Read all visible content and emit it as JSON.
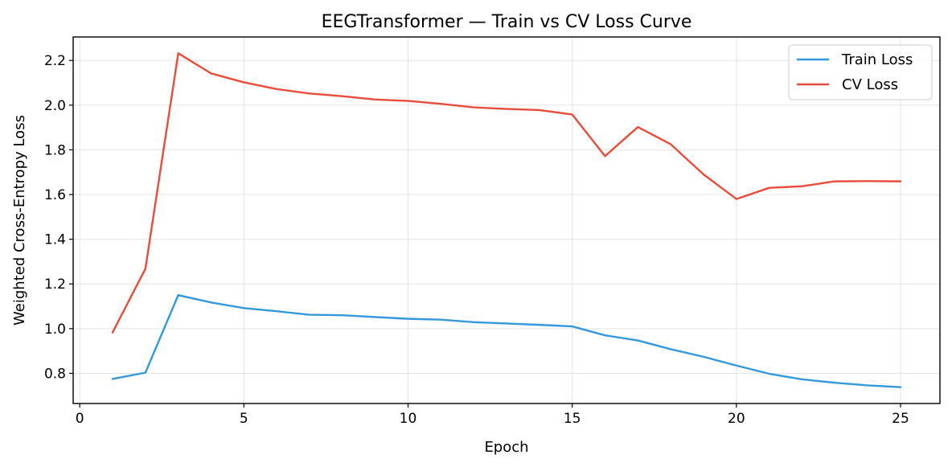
{
  "chart_data": {
    "type": "line",
    "title": "EEGTransformer — Train vs CV Loss Curve",
    "xlabel": "Epoch",
    "ylabel": "Weighted Cross-Entropy Loss",
    "xlim": [
      -0.2,
      26.2
    ],
    "ylim": [
      0.665,
      2.305
    ],
    "xticks": [
      0,
      5,
      10,
      15,
      20,
      25
    ],
    "yticks": [
      0.8,
      1.0,
      1.2,
      1.4,
      1.6,
      1.8,
      2.0,
      2.2
    ],
    "xtick_labels": [
      "0",
      "5",
      "10",
      "15",
      "20",
      "25"
    ],
    "ytick_labels": [
      "0.8",
      "1.0",
      "1.2",
      "1.4",
      "1.6",
      "1.8",
      "2.0",
      "2.2"
    ],
    "grid": true,
    "legend_position": "top-right",
    "x": [
      1,
      2,
      3,
      4,
      5,
      6,
      7,
      8,
      9,
      10,
      11,
      12,
      13,
      14,
      15,
      16,
      17,
      18,
      19,
      20,
      21,
      22,
      23,
      24,
      25
    ],
    "series": [
      {
        "name": "Train Loss",
        "color": "#3498db",
        "values": [
          0.775,
          0.803,
          1.15,
          1.117,
          1.092,
          1.078,
          1.062,
          1.06,
          1.052,
          1.044,
          1.04,
          1.029,
          1.023,
          1.017,
          1.01,
          0.97,
          0.947,
          0.908,
          0.874,
          0.835,
          0.798,
          0.773,
          0.758,
          0.746,
          0.738
        ]
      },
      {
        "name": "CV Loss",
        "color": "#e74c3c",
        "values": [
          0.983,
          1.268,
          2.232,
          2.142,
          2.102,
          2.072,
          2.052,
          2.04,
          2.025,
          2.019,
          2.006,
          1.99,
          1.983,
          1.978,
          1.958,
          1.772,
          1.902,
          1.825,
          1.69,
          1.58,
          1.63,
          1.637,
          1.659,
          1.66,
          1.659
        ]
      }
    ]
  }
}
